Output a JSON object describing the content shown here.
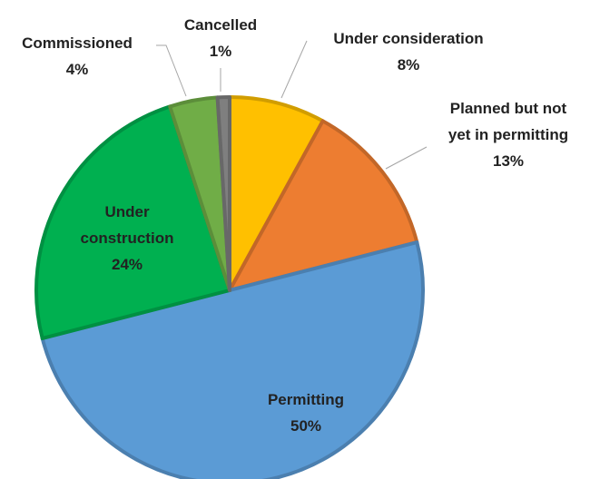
{
  "chart_data": {
    "type": "pie",
    "categories": [
      "Under consideration",
      "Planned but not yet in permitting",
      "Permitting",
      "Under construction",
      "Commissioned",
      "Cancelled"
    ],
    "values": [
      8,
      13,
      50,
      24,
      4,
      1
    ],
    "value_labels": [
      "8%",
      "13%",
      "50%",
      "24%",
      "4%",
      "1%"
    ],
    "colors": [
      "#ffc000",
      "#ed7d31",
      "#5b9bd5",
      "#00b050",
      "#70ad47",
      "#7f7f7f"
    ]
  }
}
